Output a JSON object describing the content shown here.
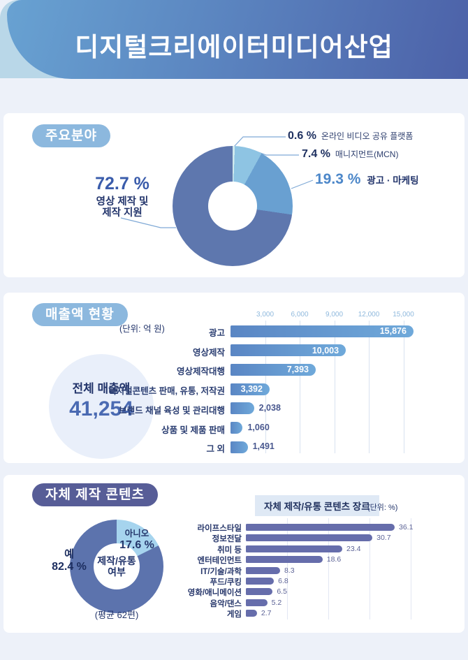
{
  "header": {
    "title": "디지털크리에이터미디어산업"
  },
  "sections": {
    "fields": {
      "badge": "주요분야",
      "callouts": {
        "main_pct": "72.7 %",
        "main_label_line1": "영상 제작 및",
        "main_label_line2": "제작 지원",
        "small1_pct": "0.6 %",
        "small1_label": "온라인 비디오 공유 플랫폼",
        "small2_pct": "7.4 %",
        "small2_label": "매니지먼트(MCN)",
        "small3_pct": "19.3 %",
        "small3_label": "광고 · 마케팅"
      }
    },
    "revenue": {
      "badge": "매출액 현황",
      "unit": "(단위: 억 원)",
      "total_circle": {
        "label": "전체 매출액",
        "value": "41,254"
      }
    },
    "own_content": {
      "badge": "자체 제작 콘텐츠",
      "donut_center_line1": "제작/유통",
      "donut_center_line2": "여부",
      "no_label": "아니오",
      "no_pct": "17.6 %",
      "yes_label": "예",
      "yes_pct": "82.4 %",
      "footnote": "(평균 62편)",
      "genre_title": "자체 제작/유통 콘텐츠 장르",
      "genre_unit": "(단위: %)"
    }
  },
  "chart_data": [
    {
      "id": "main-fields-donut",
      "type": "pie",
      "title": "주요분야",
      "donut": true,
      "labels": [
        "온라인 비디오 공유 플랫폼",
        "매니지먼트(MCN)",
        "광고 · 마케팅",
        "영상 제작 및 제작 지원"
      ],
      "values": [
        0.6,
        7.4,
        19.3,
        72.7
      ],
      "colors": [
        "#cfe9ee",
        "#8ec4e3",
        "#69a0d1",
        "#5e77ae"
      ]
    },
    {
      "id": "revenue-bars",
      "type": "bar",
      "title": "매출액 현황",
      "unit": "억 원",
      "categories": [
        "광고",
        "영상제작",
        "영상제작대행",
        "디지털콘텐츠 판매, 유통, 저작권",
        "브랜드 채널 육성 및 관리대행",
        "상품 및 제품 판매",
        "그 외"
      ],
      "values": [
        15876,
        10003,
        7393,
        3392,
        2038,
        1060,
        1491
      ],
      "value_labels": [
        "15,876",
        "10,003",
        "7,393",
        "3,392",
        "2,038",
        "1,060",
        "1,491"
      ],
      "xticks": [
        3000,
        6000,
        9000,
        12000,
        15000
      ],
      "xtick_labels": [
        "3,000",
        "6,000",
        "9,000",
        "12,000",
        "15,000"
      ],
      "xlim": [
        0,
        16000
      ],
      "total": 41254
    },
    {
      "id": "own-content-donut",
      "type": "pie",
      "title": "자체 제작 콘텐츠 제작/유통 여부",
      "donut": true,
      "labels": [
        "아니오",
        "예"
      ],
      "values": [
        17.6,
        82.4
      ],
      "colors": [
        "#a6d4ee",
        "#5c73ad"
      ],
      "note": "(평균 62편)"
    },
    {
      "id": "genre-bars",
      "type": "bar",
      "title": "자체 제작/유통 콘텐츠 장르",
      "unit": "%",
      "categories": [
        "라이프스타일",
        "정보전달",
        "취미 등",
        "엔터테인먼트",
        "IT/기술/과학",
        "푸드/쿠킹",
        "영화/애니메이션",
        "음악/댄스",
        "게임"
      ],
      "values": [
        36.1,
        30.7,
        23.4,
        18.6,
        8.3,
        6.8,
        6.5,
        5.2,
        2.7
      ],
      "value_labels": [
        "36.1",
        "30.7",
        "23.4",
        "18.6",
        "8.3",
        "6.8",
        "6.5",
        "5.2",
        "2.7"
      ],
      "xticks": [
        10,
        20,
        30,
        40
      ],
      "xlim": [
        0,
        45
      ]
    }
  ]
}
